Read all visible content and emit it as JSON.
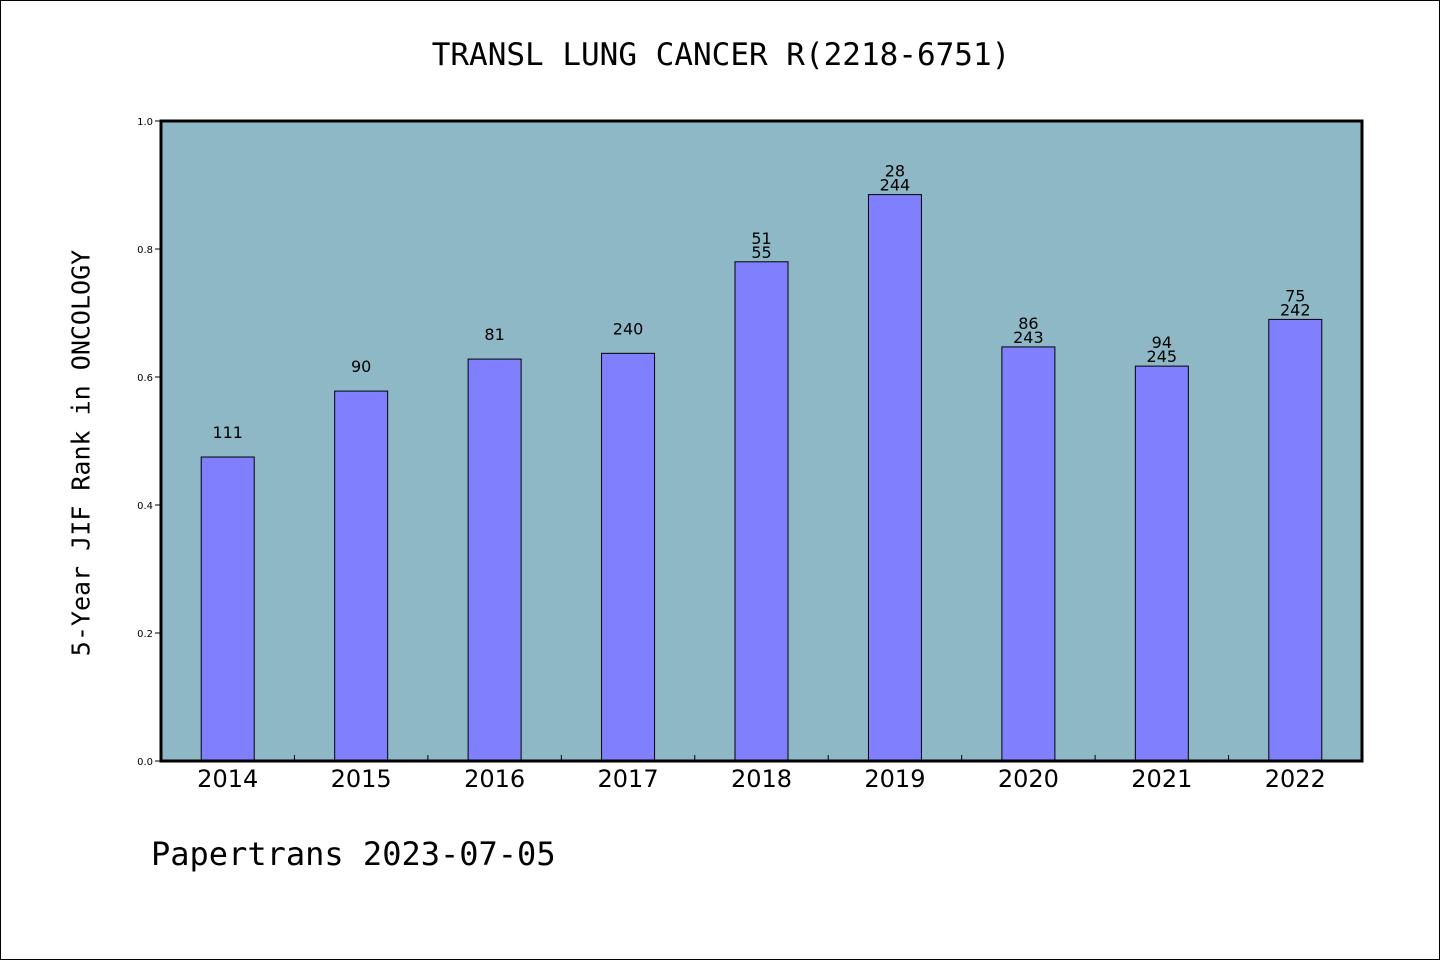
{
  "chart_data": {
    "type": "bar",
    "title": "TRANSL LUNG CANCER R(2218-6751)",
    "xlabel": "",
    "ylabel": "5-Year JIF Rank in ONCOLOGY",
    "ylim": [
      0,
      1.0
    ],
    "yticks": [
      "0.0",
      "0.2",
      "0.4",
      "0.6",
      "0.8",
      "1.0"
    ],
    "categories": [
      "2014",
      "2015",
      "2016",
      "2017",
      "2018",
      "2019",
      "2020",
      "2021",
      "2022"
    ],
    "values": [
      0.475,
      0.578,
      0.628,
      0.637,
      0.78,
      0.885,
      0.647,
      0.617,
      0.69
    ],
    "bar_labels": [
      [
        "111"
      ],
      [
        "90"
      ],
      [
        "81"
      ],
      [
        "240"
      ],
      [
        "51",
        "55"
      ],
      [
        "28",
        "244"
      ],
      [
        "86",
        "243"
      ],
      [
        "94",
        "245"
      ],
      [
        "75",
        "242"
      ]
    ],
    "grid": false,
    "colors": {
      "plot_background": "#8fb8c7",
      "bar_fill": "#8080ff",
      "bar_edge": "#000000"
    }
  },
  "footer": {
    "credit": "Papertrans 2023-07-05"
  }
}
